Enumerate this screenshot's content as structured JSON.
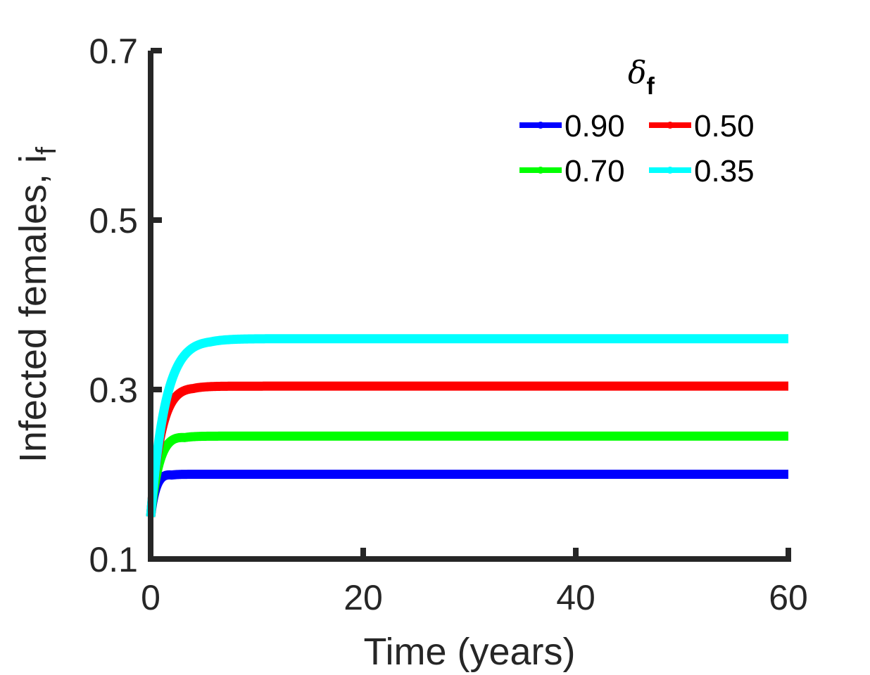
{
  "chart_data": {
    "type": "line",
    "xlabel": "Time (years)",
    "ylabel_main": "Infected females, i",
    "ylabel_sub": "f",
    "xlim": [
      0,
      60
    ],
    "ylim": [
      0.1,
      0.7
    ],
    "xticks": [
      0,
      20,
      40,
      60
    ],
    "xtick_labels": [
      "0",
      "20",
      "40",
      "60"
    ],
    "yticks": [
      0.1,
      0.3,
      0.5,
      0.7
    ],
    "ytick_labels": [
      "0.1",
      "0.3",
      "0.5",
      "0.7"
    ],
    "grid": false,
    "legend": {
      "title_main": "δ",
      "title_sub": "f",
      "placement": "top-right",
      "columns": 2
    },
    "initial_value": 0.15,
    "series": [
      {
        "name": "0.90",
        "color": "#0000ff",
        "plateau": 0.2,
        "peak": 0.202,
        "tau": 0.5
      },
      {
        "name": "0.70",
        "color": "#00ff00",
        "plateau": 0.245,
        "peak": 0.248,
        "tau": 0.8
      },
      {
        "name": "0.50",
        "color": "#ff0000",
        "plateau": 0.304,
        "peak": 0.306,
        "tau": 1.0
      },
      {
        "name": "0.35",
        "color": "#00ffff",
        "plateau": 0.36,
        "peak": 0.362,
        "tau": 1.4
      }
    ]
  }
}
